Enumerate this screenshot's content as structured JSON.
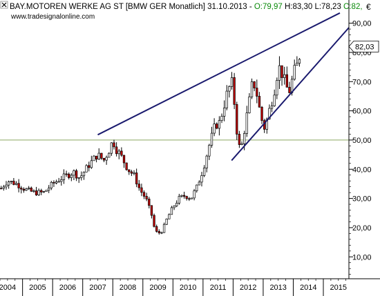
{
  "header": {
    "title": "BAY.MOTOREN WERKE AG ST [BMW GER  Monatlich] 31.10.2013 - ",
    "ohlc": [
      {
        "label": "O:",
        "value": "79,97",
        "color": "#0a8a0a"
      },
      {
        "label": "H:",
        "value": "83,30",
        "color": "#000000"
      },
      {
        "label": "L:",
        "value": "78,23",
        "color": "#000000"
      },
      {
        "label": "C:",
        "value": "82,",
        "color": "#0a8a0a"
      }
    ],
    "source": "www.tradesignalonline.com",
    "currency": "€"
  },
  "chart_data": {
    "type": "candlestick",
    "x_labels": [
      "2004",
      "2005",
      "2006",
      "2007",
      "2008",
      "2009",
      "2010",
      "2011",
      "2012",
      "2013",
      "2014",
      "2015"
    ],
    "xlim": [
      2003.75,
      2015.35
    ],
    "ylim": [
      2.5,
      97
    ],
    "y_ticks": [
      10,
      20,
      30,
      40,
      50,
      60,
      70,
      80,
      90
    ],
    "y_tick_labels": [
      "10,00",
      "20,00",
      "30,00",
      "40,00",
      "50,00",
      "60,00",
      "70,00",
      "80,00",
      "90,00"
    ],
    "last_price_label": "82,03",
    "last_price": 82.03,
    "grid_line": 50,
    "anchors": [
      [
        2003.75,
        33
      ],
      [
        2004.0,
        36
      ],
      [
        2004.3,
        35
      ],
      [
        2004.6,
        33
      ],
      [
        2004.9,
        32
      ],
      [
        2005.2,
        32
      ],
      [
        2005.5,
        35
      ],
      [
        2005.8,
        37
      ],
      [
        2006.0,
        38
      ],
      [
        2006.2,
        39
      ],
      [
        2006.4,
        37
      ],
      [
        2006.6,
        40
      ],
      [
        2006.9,
        44
      ],
      [
        2007.0,
        45
      ],
      [
        2007.2,
        43
      ],
      [
        2007.4,
        47
      ],
      [
        2007.5,
        50
      ],
      [
        2007.6,
        47
      ],
      [
        2007.75,
        45
      ],
      [
        2008.0,
        40
      ],
      [
        2008.2,
        38
      ],
      [
        2008.4,
        33
      ],
      [
        2008.6,
        30
      ],
      [
        2008.8,
        24
      ],
      [
        2008.9,
        19
      ],
      [
        2009.0,
        18
      ],
      [
        2009.15,
        19
      ],
      [
        2009.3,
        23
      ],
      [
        2009.5,
        27
      ],
      [
        2009.7,
        30
      ],
      [
        2009.9,
        31
      ],
      [
        2010.1,
        30
      ],
      [
        2010.3,
        34
      ],
      [
        2010.5,
        40
      ],
      [
        2010.7,
        48
      ],
      [
        2010.9,
        55
      ],
      [
        2011.05,
        56
      ],
      [
        2011.2,
        62
      ],
      [
        2011.3,
        66
      ],
      [
        2011.45,
        70
      ],
      [
        2011.55,
        62
      ],
      [
        2011.65,
        50
      ],
      [
        2011.75,
        46
      ],
      [
        2011.85,
        52
      ],
      [
        2011.95,
        58
      ],
      [
        2012.05,
        64
      ],
      [
        2012.15,
        70
      ],
      [
        2012.25,
        68
      ],
      [
        2012.35,
        62
      ],
      [
        2012.45,
        57
      ],
      [
        2012.55,
        54
      ],
      [
        2012.65,
        58
      ],
      [
        2012.75,
        62
      ],
      [
        2012.85,
        66
      ],
      [
        2012.95,
        72
      ],
      [
        2013.05,
        75
      ],
      [
        2013.15,
        72
      ],
      [
        2013.25,
        69
      ],
      [
        2013.35,
        66
      ],
      [
        2013.45,
        70
      ],
      [
        2013.55,
        74
      ],
      [
        2013.65,
        76
      ],
      [
        2013.75,
        81
      ]
    ],
    "trend_lines": [
      {
        "from": [
          2007.0,
          51.8
        ],
        "to": [
          2015.05,
          93.5
        ]
      },
      {
        "from": [
          2011.45,
          43.0
        ],
        "to": [
          2015.35,
          88.5
        ]
      }
    ],
    "colors": {
      "up": "#ffffff",
      "down": "#c00000",
      "wick": "#000000",
      "trend": "#1a1a6e",
      "price_label_bg": "#ffffff"
    }
  }
}
